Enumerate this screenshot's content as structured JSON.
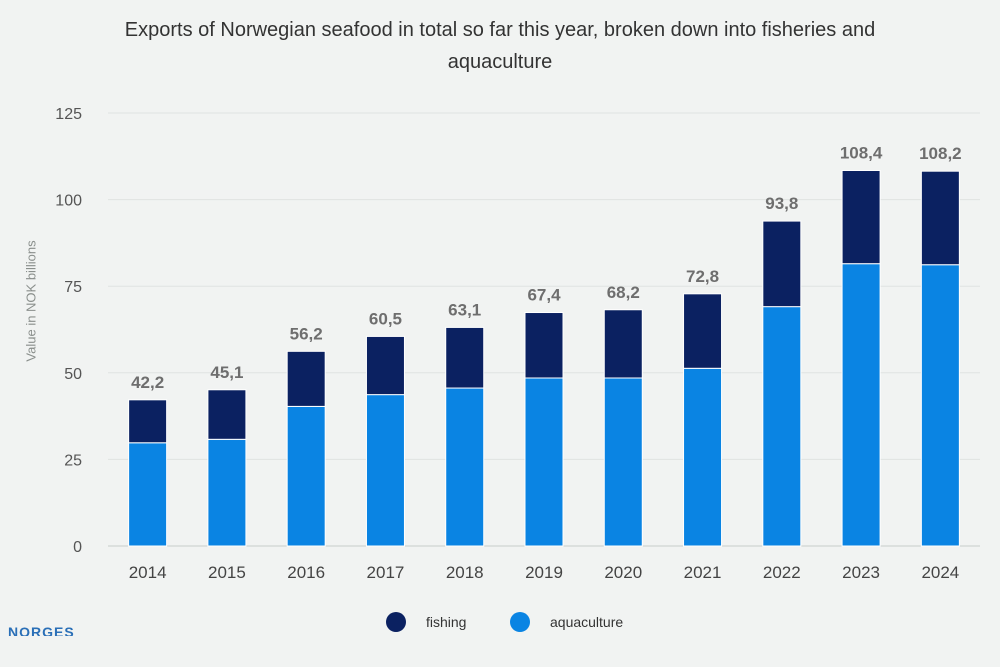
{
  "chart_data": {
    "type": "bar",
    "stacked": true,
    "title_lines": [
      "Exports of Norwegian seafood in total so far this year, broken down into fisheries and",
      "aquaculture"
    ],
    "xlabel": "",
    "ylabel": "Value in NOK billions",
    "categories": [
      "2014",
      "2015",
      "2016",
      "2017",
      "2018",
      "2019",
      "2020",
      "2021",
      "2022",
      "2023",
      "2024"
    ],
    "series": [
      {
        "name": "aquaculture",
        "color": "#0a84e3",
        "values": [
          29.8,
          30.8,
          40.3,
          43.7,
          45.6,
          48.5,
          48.5,
          51.3,
          69.1,
          81.5,
          81.2
        ]
      },
      {
        "name": "fishing",
        "color": "#0b2161",
        "values": [
          12.4,
          14.3,
          15.9,
          16.8,
          17.5,
          18.9,
          19.7,
          21.5,
          24.7,
          26.9,
          27.0
        ]
      }
    ],
    "totals": [
      "42,2",
      "45,1",
      "56,2",
      "60,5",
      "63,1",
      "67,4",
      "68,2",
      "72,8",
      "93,8",
      "108,4",
      "108,2"
    ],
    "ylim": [
      0,
      125
    ],
    "yticks": [
      0,
      25,
      50,
      75,
      100,
      125
    ],
    "grid": true,
    "legend_position": "bottom-center",
    "legend_order": [
      "fishing",
      "aquaculture"
    ]
  },
  "logo_text": "NORGES"
}
